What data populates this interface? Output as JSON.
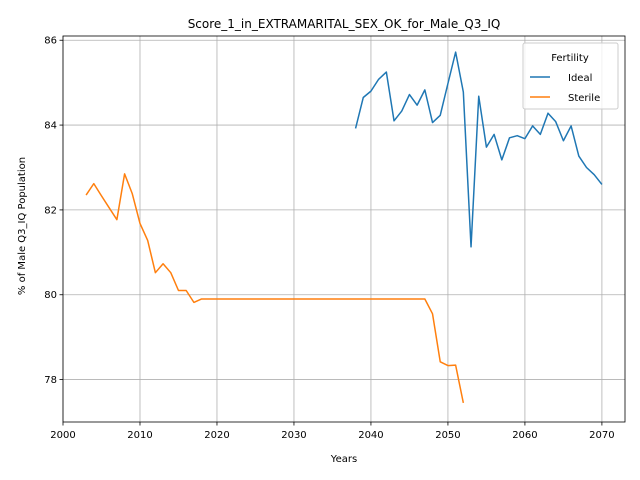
{
  "chart_data": {
    "type": "line",
    "title": "Score_1_in_EXTRAMARITAL_SEX_OK_for_Male_Q3_IQ",
    "xlabel": "Years",
    "ylabel": "% of Male Q3_IQ Population",
    "xlim": [
      2000,
      2073
    ],
    "ylim": [
      77,
      86.1
    ],
    "xticks": [
      2000,
      2010,
      2020,
      2030,
      2040,
      2050,
      2060,
      2070
    ],
    "yticks": [
      78,
      80,
      82,
      84,
      86
    ],
    "grid": true,
    "legend": {
      "title": "Fertility",
      "placement": "top-right"
    },
    "series": [
      {
        "name": "Ideal",
        "color": "#1f77b4",
        "x": [
          2038,
          2039,
          2040,
          2041,
          2042,
          2043,
          2044,
          2045,
          2046,
          2047,
          2048,
          2049,
          2050,
          2051,
          2052,
          2053,
          2054,
          2055,
          2056,
          2057,
          2058,
          2059,
          2060,
          2061,
          2062,
          2063,
          2064,
          2065,
          2066,
          2067,
          2068,
          2069,
          2070
        ],
        "y": [
          83.92,
          84.65,
          84.8,
          85.08,
          85.25,
          84.1,
          84.33,
          84.72,
          84.47,
          84.83,
          84.06,
          84.23,
          84.98,
          85.72,
          84.78,
          81.13,
          84.68,
          83.48,
          83.78,
          83.18,
          83.7,
          83.75,
          83.68,
          83.98,
          83.78,
          84.28,
          84.08,
          83.63,
          83.98,
          83.27,
          83.0,
          82.83,
          82.6
        ]
      },
      {
        "name": "Sterile",
        "color": "#ff7f0e",
        "x": [
          2003,
          2004,
          2005,
          2006,
          2007,
          2008,
          2009,
          2010,
          2011,
          2012,
          2013,
          2014,
          2015,
          2016,
          2017,
          2018,
          2019,
          2020,
          2030,
          2040,
          2047,
          2048,
          2049,
          2050,
          2051,
          2052
        ],
        "y": [
          82.35,
          82.62,
          82.33,
          82.05,
          81.77,
          82.85,
          82.38,
          81.68,
          81.28,
          80.52,
          80.73,
          80.52,
          80.1,
          80.1,
          79.82,
          79.9,
          79.9,
          79.9,
          79.9,
          79.9,
          79.9,
          79.55,
          78.42,
          78.33,
          78.34,
          77.45
        ]
      }
    ]
  }
}
